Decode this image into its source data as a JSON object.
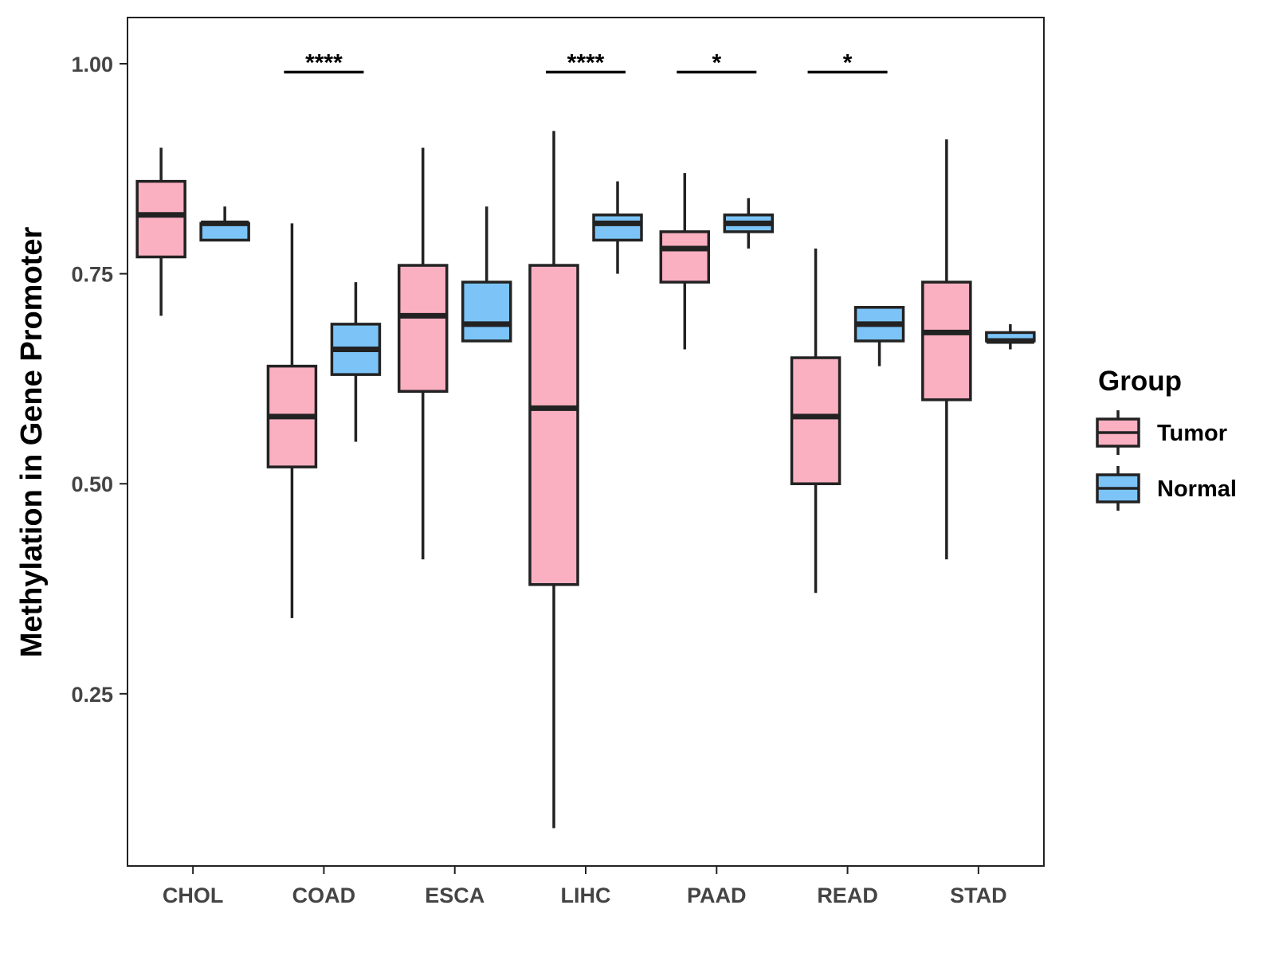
{
  "chart_data": {
    "type": "boxplot",
    "title": "",
    "xlabel": "",
    "ylabel": "Methylation in Gene Promoter",
    "ylim": [
      0.045,
      1.055
    ],
    "yticks": [
      0.25,
      0.5,
      0.75,
      1.0
    ],
    "ytick_labels": [
      "0.25",
      "0.50",
      "0.75",
      "1.00"
    ],
    "categories": [
      "CHOL",
      "COAD",
      "ESCA",
      "LIHC",
      "PAAD",
      "READ",
      "STAD"
    ],
    "legend": {
      "title": "Group",
      "position": "right",
      "entries": [
        "Tumor",
        "Normal"
      ]
    },
    "series": [
      {
        "name": "Tumor",
        "color": "#FBB0C2",
        "boxes": [
          {
            "category": "CHOL",
            "min": 0.7,
            "q1": 0.77,
            "median": 0.82,
            "q3": 0.86,
            "max": 0.9
          },
          {
            "category": "COAD",
            "min": 0.34,
            "q1": 0.52,
            "median": 0.58,
            "q3": 0.64,
            "max": 0.81
          },
          {
            "category": "ESCA",
            "min": 0.41,
            "q1": 0.61,
            "median": 0.7,
            "q3": 0.76,
            "max": 0.9
          },
          {
            "category": "LIHC",
            "min": 0.09,
            "q1": 0.38,
            "median": 0.59,
            "q3": 0.76,
            "max": 0.92
          },
          {
            "category": "PAAD",
            "min": 0.66,
            "q1": 0.74,
            "median": 0.78,
            "q3": 0.8,
            "max": 0.87
          },
          {
            "category": "READ",
            "min": 0.37,
            "q1": 0.5,
            "median": 0.58,
            "q3": 0.65,
            "max": 0.78
          },
          {
            "category": "STAD",
            "min": 0.41,
            "q1": 0.6,
            "median": 0.68,
            "q3": 0.74,
            "max": 0.91
          }
        ]
      },
      {
        "name": "Normal",
        "color": "#7CC4F8",
        "boxes": [
          {
            "category": "CHOL",
            "min": 0.79,
            "q1": 0.79,
            "median": 0.81,
            "q3": 0.81,
            "max": 0.83
          },
          {
            "category": "COAD",
            "min": 0.55,
            "q1": 0.63,
            "median": 0.66,
            "q3": 0.69,
            "max": 0.74
          },
          {
            "category": "ESCA",
            "min": 0.67,
            "q1": 0.67,
            "median": 0.69,
            "q3": 0.74,
            "max": 0.83
          },
          {
            "category": "LIHC",
            "min": 0.75,
            "q1": 0.79,
            "median": 0.81,
            "q3": 0.82,
            "max": 0.86
          },
          {
            "category": "PAAD",
            "min": 0.78,
            "q1": 0.8,
            "median": 0.81,
            "q3": 0.82,
            "max": 0.84
          },
          {
            "category": "READ",
            "min": 0.64,
            "q1": 0.67,
            "median": 0.69,
            "q3": 0.71,
            "max": 0.71
          },
          {
            "category": "STAD",
            "min": 0.66,
            "q1": 0.67,
            "median": 0.67,
            "q3": 0.68,
            "max": 0.69
          }
        ]
      }
    ],
    "significance": [
      {
        "category": "COAD",
        "label": "****",
        "y": 0.99
      },
      {
        "category": "LIHC",
        "label": "****",
        "y": 0.99
      },
      {
        "category": "PAAD",
        "label": "*",
        "y": 0.99
      },
      {
        "category": "READ",
        "label": "*",
        "y": 0.99
      }
    ],
    "colors": {
      "tumor": "#FBB0C2",
      "normal": "#7CC4F8",
      "stroke": "#222222",
      "axis_text": "#444444"
    }
  }
}
